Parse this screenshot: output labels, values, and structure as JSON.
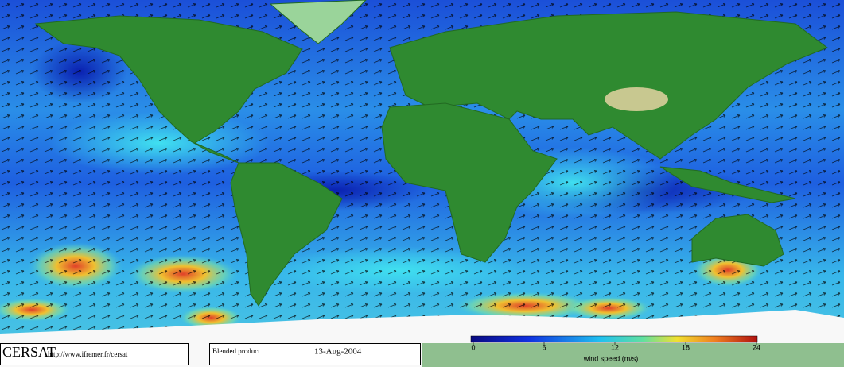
{
  "footer": {
    "logo": "CERSAT",
    "url": "http://www.ifremer.fr/cersat",
    "product": "Blended product",
    "date": "13-Aug-2004"
  },
  "colorbar": {
    "range": [
      0,
      24
    ],
    "ticks": [
      0,
      6,
      12,
      18,
      24
    ],
    "label": "wind speed (m/s)"
  }
}
